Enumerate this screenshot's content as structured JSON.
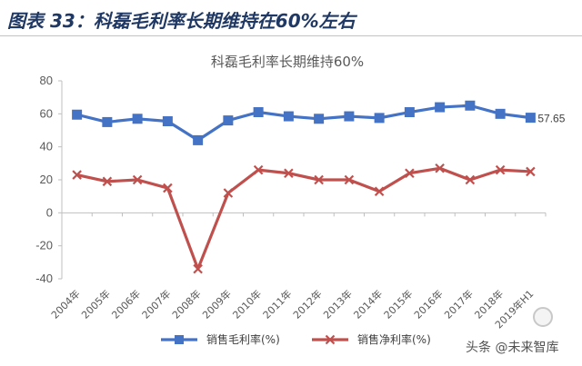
{
  "header": {
    "title": "图表 33：科磊毛利率长期维持在60%左右"
  },
  "watermark": {
    "text": "头条 @未来智库"
  },
  "colors": {
    "gross_margin": "#4472c4",
    "net_margin": "#c0504d",
    "axis": "#bfbfbf",
    "header_text": "#1f3864"
  },
  "chart_data": {
    "type": "line",
    "title": "科磊毛利率长期维持60%",
    "xlabel": "",
    "ylabel": "",
    "ylim": [
      -40,
      80
    ],
    "yticks": [
      80,
      60,
      40,
      20,
      0,
      -20,
      -40
    ],
    "grid": false,
    "legend_position": "bottom",
    "categories": [
      "2004年",
      "2005年",
      "2006年",
      "2007年",
      "2008年",
      "2009年",
      "2010年",
      "2011年",
      "2012年",
      "2013年",
      "2014年",
      "2015年",
      "2016年",
      "2017年",
      "2018年",
      "2019年H1"
    ],
    "series": [
      {
        "name": "销售毛利率(%)",
        "marker": "square",
        "color": "#4472c4",
        "values": [
          59.5,
          55,
          57,
          55.5,
          44,
          56,
          61,
          58.5,
          57,
          58.5,
          57.5,
          61,
          64,
          65,
          60,
          57.65
        ]
      },
      {
        "name": "销售净利率(%)",
        "marker": "x",
        "color": "#c0504d",
        "values": [
          23,
          19,
          20,
          15,
          -34,
          12,
          26,
          24,
          20,
          20,
          13,
          24,
          27,
          20,
          26,
          25
        ]
      }
    ],
    "annotations": [
      {
        "series": 0,
        "index": 15,
        "text": "57.65"
      }
    ]
  }
}
